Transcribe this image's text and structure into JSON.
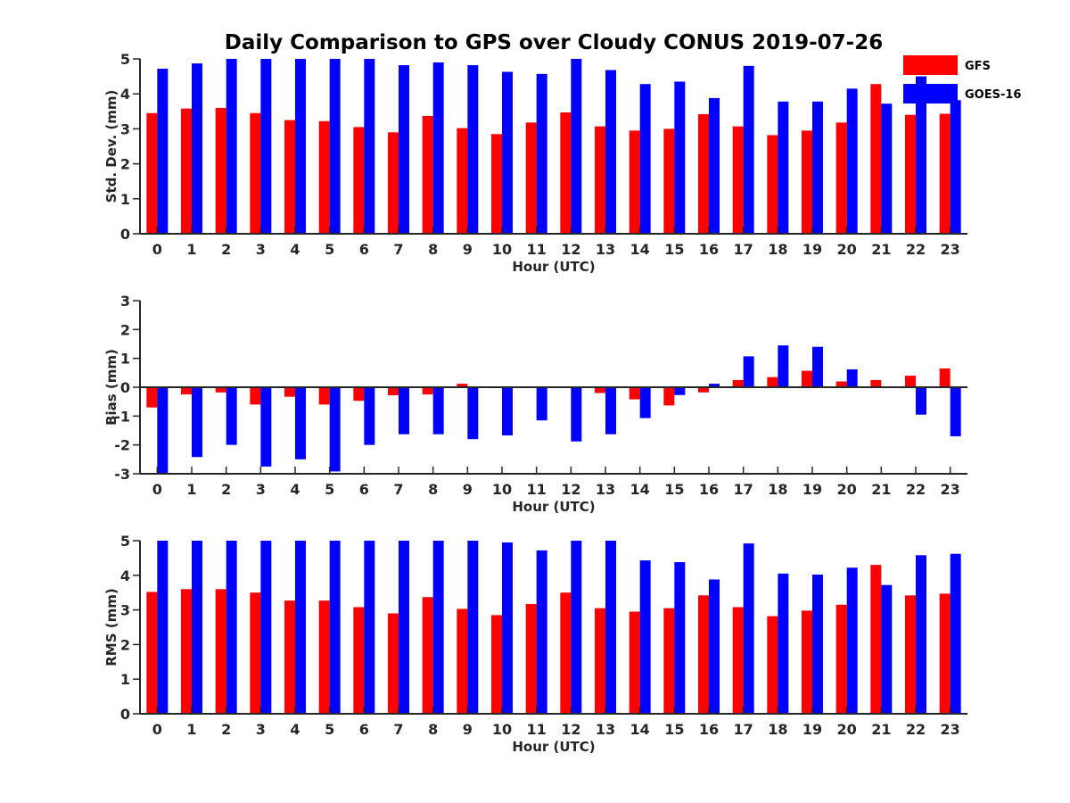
{
  "chart_data": {
    "title": "Daily Comparison to GPS over Cloudy CONUS 2019-07-26",
    "legend": {
      "placement": "top-right",
      "entries": [
        {
          "name": "GFS",
          "color": "#ff0000"
        },
        {
          "name": "GOES-16",
          "color": "#0000ff"
        }
      ]
    },
    "colors": {
      "gfs": "#ff0000",
      "goes": "#0000ff"
    },
    "panels": [
      {
        "id": "std-dev",
        "type": "bar",
        "ylabel": "Std. Dev. (mm)",
        "xlabel": "Hour (UTC)",
        "ylim": [
          0,
          5
        ],
        "yticks": [
          0,
          1,
          2,
          3,
          4,
          5
        ],
        "categories": [
          "0",
          "1",
          "2",
          "3",
          "4",
          "5",
          "6",
          "7",
          "8",
          "9",
          "10",
          "11",
          "12",
          "13",
          "14",
          "15",
          "16",
          "17",
          "18",
          "19",
          "20",
          "21",
          "22",
          "23"
        ],
        "series": [
          {
            "name": "GFS",
            "values": [
              3.45,
              3.58,
              3.6,
              3.45,
              3.25,
              3.22,
              3.05,
              2.9,
              3.37,
              3.02,
              2.85,
              3.18,
              3.47,
              3.07,
              2.95,
              3.0,
              3.42,
              3.07,
              2.82,
              2.95,
              3.18,
              4.28,
              3.4,
              3.43
            ]
          },
          {
            "name": "GOES-16",
            "values": [
              4.72,
              4.87,
              5.0,
              5.0,
              5.0,
              5.0,
              5.0,
              4.82,
              4.9,
              4.82,
              4.63,
              4.57,
              5.0,
              4.68,
              4.28,
              4.35,
              3.88,
              4.8,
              3.78,
              3.78,
              4.15,
              3.72,
              4.5,
              3.82
            ]
          }
        ]
      },
      {
        "id": "bias",
        "type": "bar",
        "ylabel": "Bias (mm)",
        "xlabel": "Hour (UTC)",
        "ylim": [
          -3,
          3
        ],
        "yticks": [
          -3,
          -2,
          -1,
          0,
          1,
          2,
          3
        ],
        "categories": [
          "0",
          "1",
          "2",
          "3",
          "4",
          "5",
          "6",
          "7",
          "8",
          "9",
          "10",
          "11",
          "12",
          "13",
          "14",
          "15",
          "16",
          "17",
          "18",
          "19",
          "20",
          "21",
          "22",
          "23"
        ],
        "series": [
          {
            "name": "GFS",
            "values": [
              -0.7,
              -0.25,
              -0.18,
              -0.6,
              -0.33,
              -0.6,
              -0.47,
              -0.28,
              -0.25,
              0.12,
              0.0,
              0.03,
              0.0,
              -0.2,
              -0.42,
              -0.63,
              -0.18,
              0.25,
              0.35,
              0.57,
              0.2,
              0.25,
              0.4,
              0.65
            ]
          },
          {
            "name": "GOES-16",
            "values": [
              -3.0,
              -2.42,
              -2.0,
              -2.75,
              -2.5,
              -2.92,
              -2.0,
              -1.63,
              -1.63,
              -1.8,
              -1.67,
              -1.15,
              -1.88,
              -1.63,
              -1.07,
              -0.27,
              0.12,
              1.07,
              1.45,
              1.4,
              0.62,
              0.0,
              -0.95,
              -1.7
            ]
          }
        ]
      },
      {
        "id": "rms",
        "type": "bar",
        "ylabel": "RMS (mm)",
        "xlabel": "Hour (UTC)",
        "ylim": [
          0,
          5
        ],
        "yticks": [
          0,
          1,
          2,
          3,
          4,
          5
        ],
        "categories": [
          "0",
          "1",
          "2",
          "3",
          "4",
          "5",
          "6",
          "7",
          "8",
          "9",
          "10",
          "11",
          "12",
          "13",
          "14",
          "15",
          "16",
          "17",
          "18",
          "19",
          "20",
          "21",
          "22",
          "23"
        ],
        "series": [
          {
            "name": "GFS",
            "values": [
              3.52,
              3.6,
              3.6,
              3.5,
              3.27,
              3.27,
              3.08,
              2.9,
              3.37,
              3.03,
              2.85,
              3.17,
              3.5,
              3.05,
              2.95,
              3.05,
              3.42,
              3.08,
              2.82,
              2.98,
              3.15,
              4.3,
              3.42,
              3.47
            ]
          },
          {
            "name": "GOES-16",
            "values": [
              5.0,
              5.0,
              5.0,
              5.0,
              5.0,
              5.0,
              5.0,
              5.0,
              5.0,
              5.0,
              4.95,
              4.72,
              5.0,
              5.0,
              4.43,
              4.38,
              3.88,
              4.92,
              4.05,
              4.02,
              4.22,
              3.72,
              4.58,
              4.62
            ]
          }
        ]
      }
    ]
  }
}
